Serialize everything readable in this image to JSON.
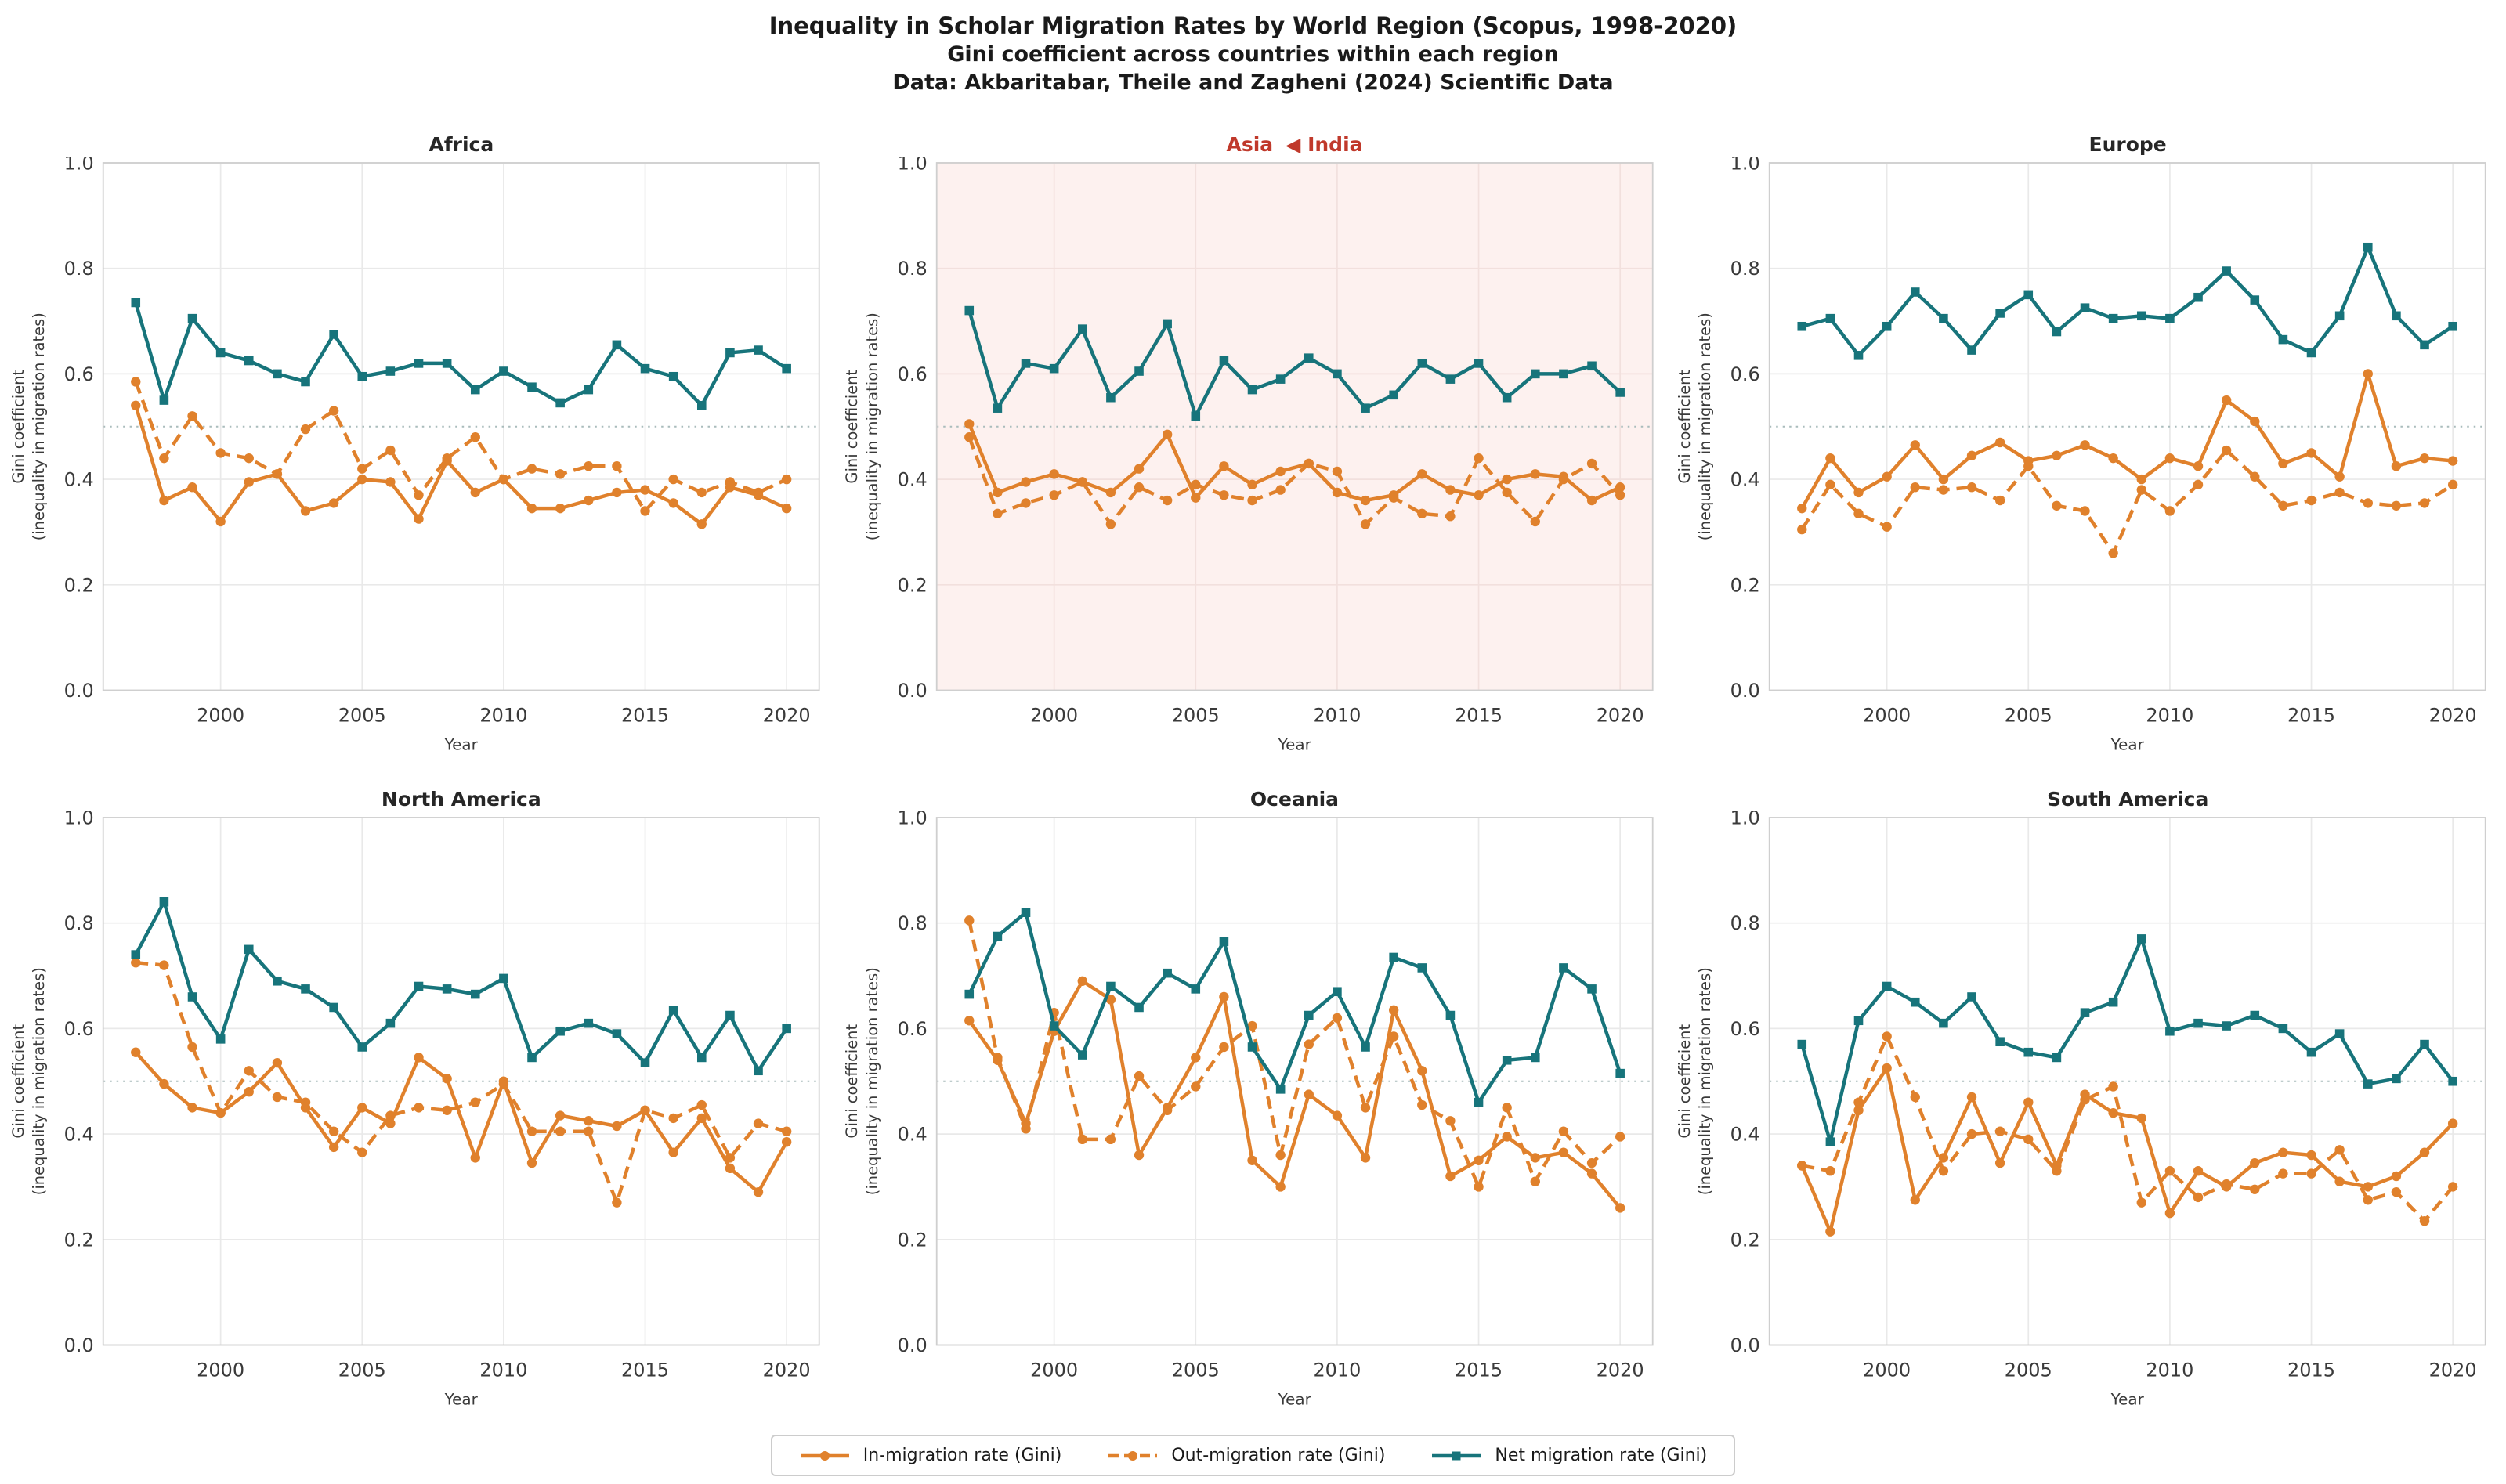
{
  "title": {
    "line1": "Inequality in Scholar Migration Rates by World Region (Scopus, 1998-2020)",
    "line2": "Gini coefficient across countries within each region",
    "line3": "Data: Akbaritabar, Theile and Zagheni (2024) Scientific Data"
  },
  "ylabel_line1": "Gini coefficient",
  "ylabel_line2": "(inequality in migration rates)",
  "xlabel": "Year",
  "colors": {
    "in": "#e0812c",
    "out": "#e0812c",
    "net": "#17747b",
    "annotation_red": "#c0392b",
    "asia_bg": "#fdf1ef",
    "grid": "#e9e9e9",
    "asia_grid": "#f2e0dd",
    "spine": "#cfcfcf",
    "ref_line": "#a9bcbc",
    "tick_text": "#3a3a3a"
  },
  "legend": {
    "items": [
      {
        "id": "in",
        "label": "In-migration rate (Gini)"
      },
      {
        "id": "out",
        "label": "Out-migration rate (Gini)"
      },
      {
        "id": "net",
        "label": "Net migration rate (Gini)"
      }
    ]
  },
  "axes": {
    "ylim": [
      0.0,
      1.0
    ],
    "yticks": [
      0.0,
      0.2,
      0.4,
      0.6,
      0.8,
      1.0
    ],
    "xticks": [
      2000,
      2005,
      2010,
      2015,
      2020
    ],
    "reference_line": 0.5,
    "grid": true
  },
  "chart_data": [
    {
      "type": "line",
      "title": "Africa",
      "years": [
        1997,
        1998,
        1999,
        2000,
        2001,
        2002,
        2003,
        2004,
        2005,
        2006,
        2007,
        2008,
        2009,
        2010,
        2011,
        2012,
        2013,
        2014,
        2015,
        2016,
        2017,
        2018,
        2019,
        2020
      ],
      "series": [
        {
          "id": "in",
          "name": "In-migration rate (Gini)",
          "values": [
            0.54,
            0.36,
            0.385,
            0.32,
            0.395,
            0.41,
            0.34,
            0.355,
            0.4,
            0.395,
            0.325,
            0.435,
            0.375,
            0.4,
            0.345,
            0.345,
            0.36,
            0.375,
            0.38,
            0.355,
            0.315,
            0.385,
            0.37,
            0.345
          ]
        },
        {
          "id": "out",
          "name": "Out-migration rate (Gini)",
          "values": [
            0.585,
            0.44,
            0.52,
            0.45,
            0.44,
            0.41,
            0.495,
            0.53,
            0.42,
            0.455,
            0.37,
            0.44,
            0.48,
            0.4,
            0.42,
            0.41,
            0.425,
            0.425,
            0.34,
            0.4,
            0.375,
            0.395,
            0.375,
            0.4
          ]
        },
        {
          "id": "net",
          "name": "Net migration rate (Gini)",
          "values": [
            0.735,
            0.55,
            0.705,
            0.64,
            0.625,
            0.6,
            0.585,
            0.675,
            0.595,
            0.605,
            0.62,
            0.62,
            0.57,
            0.605,
            0.575,
            0.545,
            0.57,
            0.655,
            0.61,
            0.595,
            0.54,
            0.64,
            0.645,
            0.61
          ]
        }
      ]
    },
    {
      "type": "line",
      "title": "Asia",
      "annotation": "◀ India",
      "title_color": "#c0392b",
      "bg": "#fdf1ef",
      "grid_color": "#f2e0dd",
      "years": [
        1997,
        1998,
        1999,
        2000,
        2001,
        2002,
        2003,
        2004,
        2005,
        2006,
        2007,
        2008,
        2009,
        2010,
        2011,
        2012,
        2013,
        2014,
        2015,
        2016,
        2017,
        2018,
        2019,
        2020
      ],
      "series": [
        {
          "id": "in",
          "name": "In-migration rate (Gini)",
          "values": [
            0.505,
            0.375,
            0.395,
            0.41,
            0.395,
            0.375,
            0.42,
            0.485,
            0.365,
            0.425,
            0.39,
            0.415,
            0.43,
            0.375,
            0.36,
            0.37,
            0.41,
            0.38,
            0.37,
            0.4,
            0.41,
            0.405,
            0.36,
            0.385
          ]
        },
        {
          "id": "out",
          "name": "Out-migration rate (Gini)",
          "values": [
            0.48,
            0.335,
            0.355,
            0.37,
            0.395,
            0.315,
            0.385,
            0.36,
            0.39,
            0.37,
            0.36,
            0.38,
            0.43,
            0.415,
            0.315,
            0.365,
            0.335,
            0.33,
            0.44,
            0.375,
            0.32,
            0.4,
            0.43,
            0.37
          ]
        },
        {
          "id": "net",
          "name": "Net migration rate (Gini)",
          "values": [
            0.72,
            0.535,
            0.62,
            0.61,
            0.685,
            0.555,
            0.605,
            0.695,
            0.52,
            0.625,
            0.57,
            0.59,
            0.63,
            0.6,
            0.535,
            0.56,
            0.62,
            0.59,
            0.62,
            0.555,
            0.6,
            0.6,
            0.615,
            0.565
          ]
        }
      ]
    },
    {
      "type": "line",
      "title": "Europe",
      "years": [
        1997,
        1998,
        1999,
        2000,
        2001,
        2002,
        2003,
        2004,
        2005,
        2006,
        2007,
        2008,
        2009,
        2010,
        2011,
        2012,
        2013,
        2014,
        2015,
        2016,
        2017,
        2018,
        2019,
        2020
      ],
      "series": [
        {
          "id": "in",
          "name": "In-migration rate (Gini)",
          "values": [
            0.345,
            0.44,
            0.375,
            0.405,
            0.465,
            0.4,
            0.445,
            0.47,
            0.435,
            0.445,
            0.465,
            0.44,
            0.4,
            0.44,
            0.425,
            0.55,
            0.51,
            0.43,
            0.45,
            0.405,
            0.6,
            0.425,
            0.44,
            0.435
          ]
        },
        {
          "id": "out",
          "name": "Out-migration rate (Gini)",
          "values": [
            0.305,
            0.39,
            0.335,
            0.31,
            0.385,
            0.38,
            0.385,
            0.36,
            0.425,
            0.35,
            0.34,
            0.26,
            0.38,
            0.34,
            0.39,
            0.455,
            0.405,
            0.35,
            0.36,
            0.375,
            0.355,
            0.35,
            0.355,
            0.39
          ]
        },
        {
          "id": "net",
          "name": "Net migration rate (Gini)",
          "values": [
            0.69,
            0.705,
            0.635,
            0.69,
            0.755,
            0.705,
            0.645,
            0.715,
            0.75,
            0.68,
            0.725,
            0.705,
            0.71,
            0.705,
            0.745,
            0.795,
            0.74,
            0.665,
            0.64,
            0.71,
            0.84,
            0.71,
            0.655,
            0.69
          ]
        }
      ]
    },
    {
      "type": "line",
      "title": "North America",
      "years": [
        1997,
        1998,
        1999,
        2000,
        2001,
        2002,
        2003,
        2004,
        2005,
        2006,
        2007,
        2008,
        2009,
        2010,
        2011,
        2012,
        2013,
        2014,
        2015,
        2016,
        2017,
        2018,
        2019,
        2020
      ],
      "series": [
        {
          "id": "in",
          "name": "In-migration rate (Gini)",
          "values": [
            0.555,
            0.495,
            0.45,
            0.44,
            0.48,
            0.535,
            0.45,
            0.375,
            0.45,
            0.42,
            0.545,
            0.505,
            0.355,
            0.5,
            0.345,
            0.435,
            0.425,
            0.415,
            0.445,
            0.365,
            0.43,
            0.335,
            0.29,
            0.385
          ]
        },
        {
          "id": "out",
          "name": "Out-migration rate (Gini)",
          "values": [
            0.725,
            0.72,
            0.565,
            0.44,
            0.52,
            0.47,
            0.46,
            0.405,
            0.365,
            0.435,
            0.45,
            0.445,
            0.46,
            0.495,
            0.405,
            0.405,
            0.405,
            0.27,
            0.445,
            0.43,
            0.455,
            0.355,
            0.42,
            0.405
          ]
        },
        {
          "id": "net",
          "name": "Net migration rate (Gini)",
          "values": [
            0.74,
            0.84,
            0.66,
            0.58,
            0.75,
            0.69,
            0.675,
            0.64,
            0.565,
            0.61,
            0.68,
            0.675,
            0.665,
            0.695,
            0.545,
            0.595,
            0.61,
            0.59,
            0.535,
            0.635,
            0.545,
            0.625,
            0.52,
            0.6
          ]
        }
      ]
    },
    {
      "type": "line",
      "title": "Oceania",
      "years": [
        1997,
        1998,
        1999,
        2000,
        2001,
        2002,
        2003,
        2004,
        2005,
        2006,
        2007,
        2008,
        2009,
        2010,
        2011,
        2012,
        2013,
        2014,
        2015,
        2016,
        2017,
        2018,
        2019,
        2020
      ],
      "series": [
        {
          "id": "in",
          "name": "In-migration rate (Gini)",
          "values": [
            0.615,
            0.54,
            0.42,
            0.595,
            0.69,
            0.655,
            0.36,
            0.45,
            0.545,
            0.66,
            0.35,
            0.3,
            0.475,
            0.435,
            0.355,
            0.635,
            0.52,
            0.32,
            0.35,
            0.395,
            0.355,
            0.365,
            0.325,
            0.26
          ]
        },
        {
          "id": "out",
          "name": "Out-migration rate (Gini)",
          "values": [
            0.805,
            0.545,
            0.41,
            0.63,
            0.39,
            0.39,
            0.51,
            0.445,
            0.49,
            0.565,
            0.605,
            0.36,
            0.57,
            0.62,
            0.45,
            0.585,
            0.455,
            0.425,
            0.3,
            0.45,
            0.31,
            0.405,
            0.345,
            0.395
          ]
        },
        {
          "id": "net",
          "name": "Net migration rate (Gini)",
          "values": [
            0.665,
            0.775,
            0.82,
            0.605,
            0.55,
            0.68,
            0.64,
            0.705,
            0.675,
            0.765,
            0.565,
            0.485,
            0.625,
            0.67,
            0.565,
            0.735,
            0.715,
            0.625,
            0.46,
            0.54,
            0.545,
            0.715,
            0.675,
            0.515
          ]
        }
      ]
    },
    {
      "type": "line",
      "title": "South America",
      "years": [
        1997,
        1998,
        1999,
        2000,
        2001,
        2002,
        2003,
        2004,
        2005,
        2006,
        2007,
        2008,
        2009,
        2010,
        2011,
        2012,
        2013,
        2014,
        2015,
        2016,
        2017,
        2018,
        2019,
        2020
      ],
      "series": [
        {
          "id": "in",
          "name": "In-migration rate (Gini)",
          "values": [
            0.34,
            0.215,
            0.445,
            0.525,
            0.275,
            0.355,
            0.47,
            0.345,
            0.46,
            0.34,
            0.475,
            0.44,
            0.43,
            0.25,
            0.33,
            0.3,
            0.345,
            0.365,
            0.36,
            0.31,
            0.3,
            0.32,
            0.365,
            0.42
          ]
        },
        {
          "id": "out",
          "name": "Out-migration rate (Gini)",
          "values": [
            0.34,
            0.33,
            0.46,
            0.585,
            0.47,
            0.33,
            0.4,
            0.405,
            0.39,
            0.33,
            0.465,
            0.49,
            0.27,
            0.33,
            0.28,
            0.305,
            0.295,
            0.325,
            0.325,
            0.37,
            0.275,
            0.29,
            0.235,
            0.3
          ]
        },
        {
          "id": "net",
          "name": "Net migration rate (Gini)",
          "values": [
            0.57,
            0.385,
            0.615,
            0.68,
            0.65,
            0.61,
            0.66,
            0.575,
            0.555,
            0.545,
            0.63,
            0.65,
            0.77,
            0.595,
            0.61,
            0.605,
            0.625,
            0.6,
            0.555,
            0.59,
            0.495,
            0.505,
            0.57,
            0.5
          ]
        }
      ]
    }
  ]
}
